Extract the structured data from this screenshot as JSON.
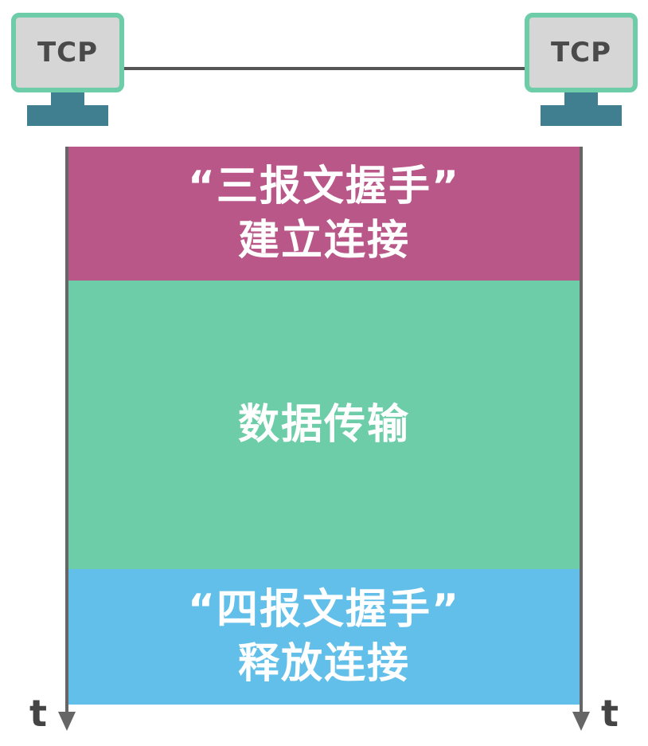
{
  "hosts": {
    "left_label": "TCP",
    "right_label": "TCP"
  },
  "phases": {
    "handshake": {
      "line1": "“三报文握手”",
      "line2": "建立连接"
    },
    "transfer": {
      "line1": "数据传输"
    },
    "release": {
      "line1": "“四报文握手”",
      "line2": "释放连接"
    }
  },
  "axes": {
    "left_label": "t",
    "right_label": "t"
  },
  "colors": {
    "monitor_frame": "#6ccda8",
    "monitor_screen": "#d6d6d6",
    "monitor_stand": "#3f7f8f",
    "handshake": "#b85788",
    "transfer": "#6ccda8",
    "release": "#62bfe9",
    "axis": "#666666"
  }
}
